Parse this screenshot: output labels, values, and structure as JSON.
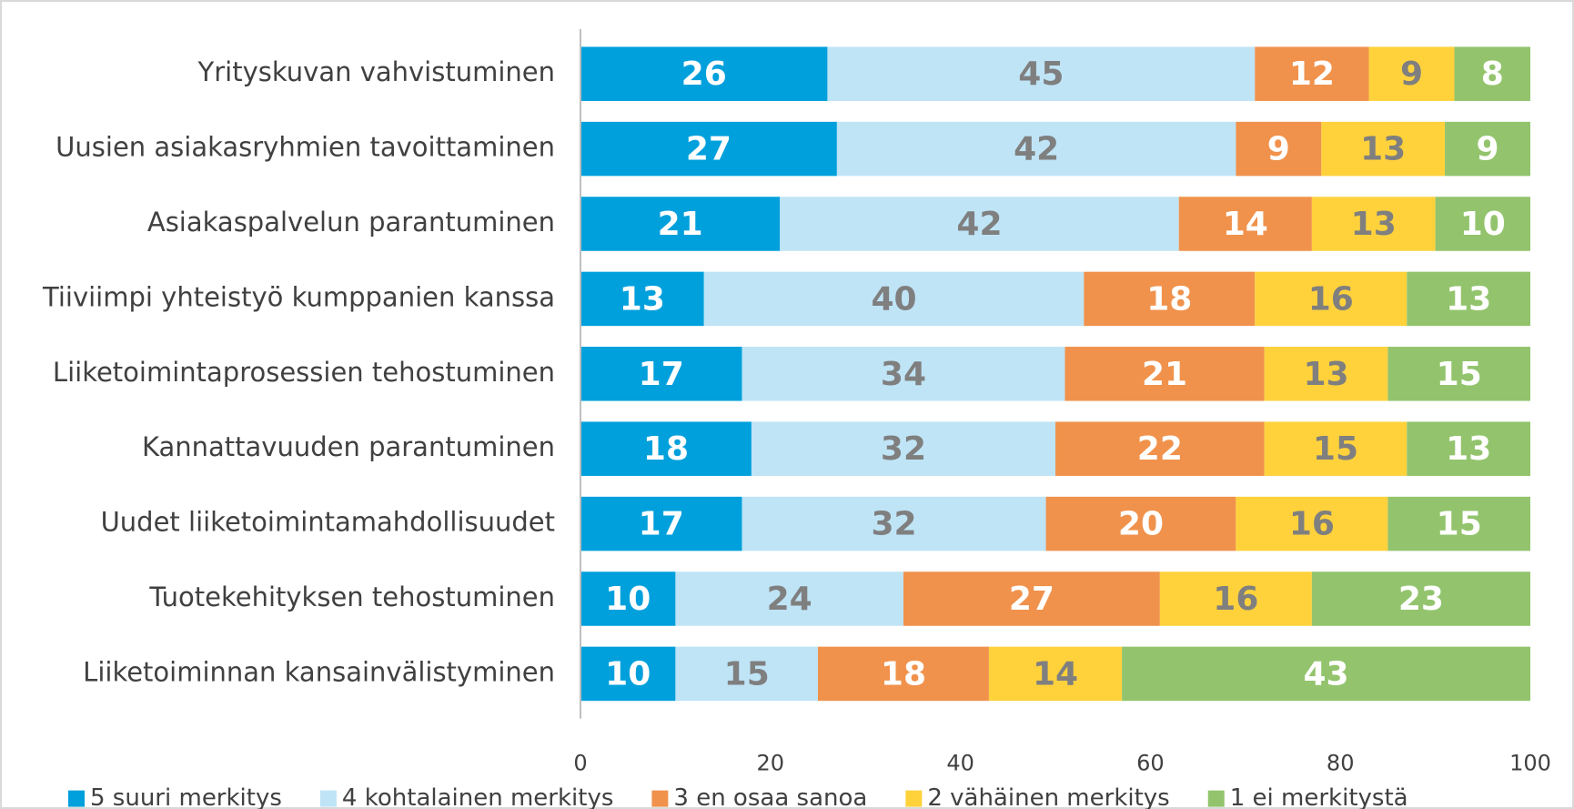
{
  "chart_data": {
    "type": "stacked_bar_horizontal",
    "categories": [
      "Yrityskuvan vahvistuminen",
      "Uusien asiakasryhmien tavoittaminen",
      "Asiakaspalvelun parantuminen",
      "Tiiviimpi yhteistyö kumppanien kanssa",
      "Liiketoimintaprosessien tehostuminen",
      "Kannattavuuden parantuminen",
      "Uudet liiketoimintamahdollisuudet",
      "Tuotekehityksen tehostuminen",
      "Liiketoiminnan kansainvälistyminen"
    ],
    "series": [
      {
        "name": "5 suuri merkitys",
        "color": "#00a0dc",
        "label_color": "#ffffff",
        "values": [
          26,
          27,
          21,
          13,
          17,
          18,
          17,
          10,
          10
        ]
      },
      {
        "name": "4 kohtalainen merkitys",
        "color": "#bfe4f6",
        "label_color": "#7f7f7f",
        "values": [
          45,
          42,
          42,
          40,
          34,
          32,
          32,
          24,
          15
        ]
      },
      {
        "name": "3 en osaa sanoa",
        "color": "#f0924c",
        "label_color": "#ffffff",
        "values": [
          12,
          9,
          14,
          18,
          21,
          22,
          20,
          27,
          18
        ]
      },
      {
        "name": "2 vähäinen merkitys",
        "color": "#ffd23c",
        "label_color": "#7f7f7f",
        "values": [
          9,
          13,
          13,
          16,
          13,
          15,
          16,
          16,
          14
        ]
      },
      {
        "name": "1 ei merkitystä",
        "color": "#93c46d",
        "label_color": "#ffffff",
        "values": [
          8,
          9,
          10,
          13,
          15,
          13,
          15,
          23,
          43
        ]
      }
    ],
    "xlim": [
      0,
      100
    ],
    "xticks": [
      0,
      20,
      40,
      60,
      80,
      100
    ],
    "grid": false,
    "legend": "bottom"
  }
}
